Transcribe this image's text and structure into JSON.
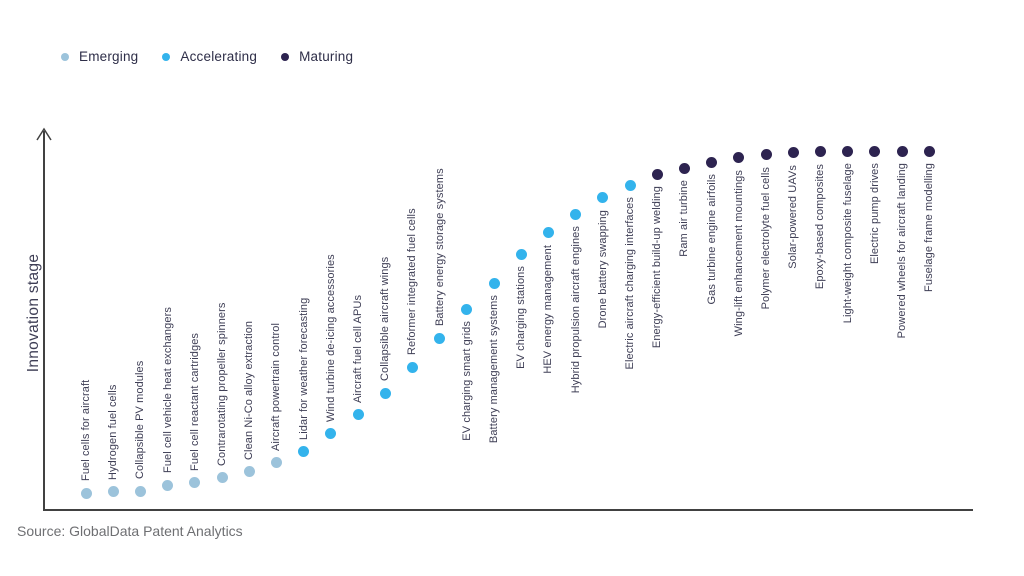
{
  "legend": {
    "items": [
      {
        "label": "Emerging",
        "stage": "emerging"
      },
      {
        "label": "Accelerating",
        "stage": "accelerating"
      },
      {
        "label": "Maturing",
        "stage": "maturing"
      }
    ]
  },
  "chart_data": {
    "type": "scatter",
    "ylabel": "Innovation stage",
    "source": "Source: GlobalData Patent Analytics",
    "legend_position": "top-left",
    "grid": false,
    "y_axis_range": [
      0,
      100
    ],
    "stage_colors": {
      "emerging": "#9CC3DB",
      "accelerating": "#33B3EC",
      "maturing": "#2D2350"
    },
    "axis_color": "#414141",
    "label_color": "#3E3E55",
    "points": [
      {
        "label": "Fuel cells for aircraft",
        "stage": "emerging",
        "value": 4.5,
        "label_side": "above"
      },
      {
        "label": "Hydrogen fuel cells",
        "stage": "emerging",
        "value": 4.8,
        "label_side": "above"
      },
      {
        "label": "Collapsible PV modules",
        "stage": "emerging",
        "value": 5.0,
        "label_side": "above"
      },
      {
        "label": "Fuel cell vehicle heat exchangers",
        "stage": "emerging",
        "value": 6.6,
        "label_side": "above"
      },
      {
        "label": "Fuel cell reactant cartridges",
        "stage": "emerging",
        "value": 7.2,
        "label_side": "above"
      },
      {
        "label": "Contrarotating propeller spinners",
        "stage": "emerging",
        "value": 8.5,
        "label_side": "above"
      },
      {
        "label": "Clean Ni-Co alloy extraction",
        "stage": "emerging",
        "value": 10.1,
        "label_side": "above"
      },
      {
        "label": "Aircraft powertrain control",
        "stage": "emerging",
        "value": 12.5,
        "label_side": "above"
      },
      {
        "label": "Lidar for weather forecasting",
        "stage": "accelerating",
        "value": 15.4,
        "label_side": "above"
      },
      {
        "label": "Wind turbine de-icing accessories",
        "stage": "accelerating",
        "value": 20.2,
        "label_side": "above"
      },
      {
        "label": "Aircraft fuel cell APUs",
        "stage": "accelerating",
        "value": 25.2,
        "label_side": "above"
      },
      {
        "label": "Collapsible aircraft wings",
        "stage": "accelerating",
        "value": 31.0,
        "label_side": "above"
      },
      {
        "label": "Reformer integrated fuel cells",
        "stage": "accelerating",
        "value": 37.9,
        "label_side": "above"
      },
      {
        "label": "Battery energy storage systems",
        "stage": "accelerating",
        "value": 45.6,
        "label_side": "above"
      },
      {
        "label": "EV charging smart grids",
        "stage": "accelerating",
        "value": 53.3,
        "label_side": "below"
      },
      {
        "label": "Battery management systems",
        "stage": "accelerating",
        "value": 60.2,
        "label_side": "below"
      },
      {
        "label": "EV charging stations",
        "stage": "accelerating",
        "value": 67.9,
        "label_side": "below"
      },
      {
        "label": "HEV energy management",
        "stage": "accelerating",
        "value": 73.5,
        "label_side": "below"
      },
      {
        "label": "Hybrid propulsion aircraft engines",
        "stage": "accelerating",
        "value": 78.5,
        "label_side": "below"
      },
      {
        "label": "Drone battery swapping",
        "stage": "accelerating",
        "value": 82.8,
        "label_side": "below"
      },
      {
        "label": "Electric aircraft charging interfaces",
        "stage": "accelerating",
        "value": 86.2,
        "label_side": "below"
      },
      {
        "label": "Energy-efficient build-up welding",
        "stage": "maturing",
        "value": 89.1,
        "label_side": "below"
      },
      {
        "label": "Ram air turbine",
        "stage": "maturing",
        "value": 90.7,
        "label_side": "below"
      },
      {
        "label": "Gas turbine engine airfoils",
        "stage": "maturing",
        "value": 92.3,
        "label_side": "below"
      },
      {
        "label": "Wing-lift enhancement mountings",
        "stage": "maturing",
        "value": 93.4,
        "label_side": "below"
      },
      {
        "label": "Polymer electrolyte fuel cells",
        "stage": "maturing",
        "value": 94.2,
        "label_side": "below"
      },
      {
        "label": "Solar-powered UAVs",
        "stage": "maturing",
        "value": 94.7,
        "label_side": "below"
      },
      {
        "label": "Epoxy-based composites",
        "stage": "maturing",
        "value": 95.0,
        "label_side": "below"
      },
      {
        "label": "Light-weight composite fuselage",
        "stage": "maturing",
        "value": 95.2,
        "label_side": "below"
      },
      {
        "label": "Electric pump drives",
        "stage": "maturing",
        "value": 95.2,
        "label_side": "below"
      },
      {
        "label": "Powered wheels for aircraft landing",
        "stage": "maturing",
        "value": 95.2,
        "label_side": "below"
      },
      {
        "label": "Fuselage frame modelling",
        "stage": "maturing",
        "value": 95.2,
        "label_side": "below"
      }
    ]
  }
}
